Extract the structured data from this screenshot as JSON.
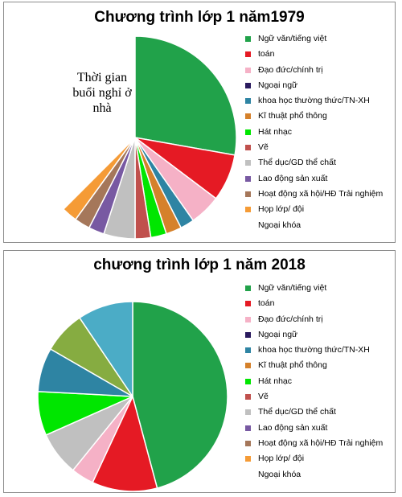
{
  "legend_items": [
    {
      "label": "Ngữ văn/tiếng việt",
      "color": "#21a24a"
    },
    {
      "label": "toán",
      "color": "#e51a24"
    },
    {
      "label": "Đạo đức/chính trị",
      "color": "#f5b1c6"
    },
    {
      "label": "Ngoại ngữ",
      "color": "#2a1a5e"
    },
    {
      "label": "khoa học thường thức/TN-XH",
      "color": "#2e84a3"
    },
    {
      "label": "Kĩ thuật phổ thông",
      "color": "#d5812b"
    },
    {
      "label": "Hát nhạc",
      "color": "#00e600"
    },
    {
      "label": "Vẽ",
      "color": "#c0504d"
    },
    {
      "label": "Thể dục/GD thể chất",
      "color": "#c0c0c0"
    },
    {
      "label": "Lao động sản xuất",
      "color": "#7859a2"
    },
    {
      "label": "Hoạt động xã hội/HĐ Trải nghiệm",
      "color": "#a5775a"
    },
    {
      "label": "Họp lớp/ đội",
      "color": "#f59b36"
    },
    {
      "label": "Ngoại khóa",
      "color": "#ffffff"
    }
  ],
  "chart_data": [
    {
      "type": "pie",
      "title": "Chương trình lớp 1 năm1979",
      "annotation": "Thời gian buổi nghỉ ở nhà",
      "start_angle_deg": 0,
      "slices": [
        {
          "label": "Ngữ văn/tiếng việt",
          "value": 100,
          "color": "#21a24a"
        },
        {
          "label": "toán",
          "value": 27,
          "color": "#e51a24"
        },
        {
          "label": "Đạo đức/chính trị",
          "value": 18,
          "color": "#f5b1c6"
        },
        {
          "label": "khoa học thường thức/TN-XH",
          "value": 8,
          "color": "#2e84a3"
        },
        {
          "label": "Kĩ thuật phổ thông",
          "value": 9,
          "color": "#d5812b"
        },
        {
          "label": "Hát nhạc",
          "value": 9,
          "color": "#00e600"
        },
        {
          "label": "Vẽ",
          "value": 9,
          "color": "#c0504d"
        },
        {
          "label": "Thể dục/GD thể chất",
          "value": 18,
          "color": "#c0c0c0"
        },
        {
          "label": "Lao động sản xuất",
          "value": 9,
          "color": "#7859a2"
        },
        {
          "label": "Hoạt động xã hội/HĐ Trải nghiệm",
          "value": 9,
          "color": "#a5775a"
        },
        {
          "label": "Họp lớp/ đội",
          "value": 9,
          "color": "#f59b36"
        },
        {
          "label": "Ngoại khóa",
          "value": 135,
          "color": "#ffffff"
        }
      ]
    },
    {
      "type": "pie",
      "title": "chương trình lớp 1 năm 2018",
      "start_angle_deg": 0,
      "slices": [
        {
          "label": "Ngữ văn/tiếng việt",
          "value": 165,
          "color": "#21a24a"
        },
        {
          "label": "toán",
          "value": 40,
          "color": "#e51a24"
        },
        {
          "label": "Đạo đức/chính trị",
          "value": 14,
          "color": "#f5b1c6"
        },
        {
          "label": "Thể dục/GD thể chất",
          "value": 27,
          "color": "#c0c0c0"
        },
        {
          "label": "Hát nhạc",
          "value": 27,
          "color": "#00e600"
        },
        {
          "label": "khoa học thường thức/TN-XH",
          "value": 27,
          "color": "#2e84a3"
        },
        {
          "label": "Ngoại khóa",
          "value": 26,
          "color": "#86ac41"
        },
        {
          "label": "Ngoại ngữ",
          "value": 34,
          "color": "#4bacc6"
        }
      ]
    }
  ]
}
